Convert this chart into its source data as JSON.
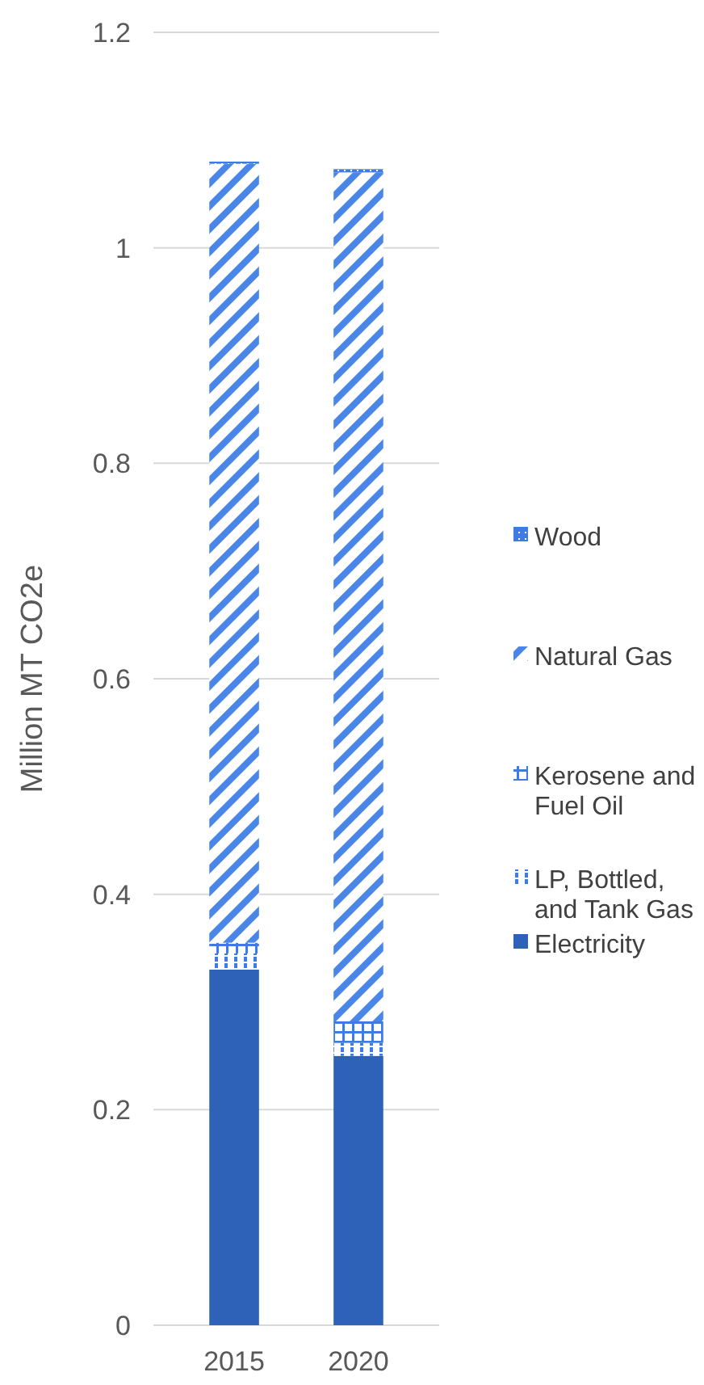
{
  "chart_data": {
    "type": "bar",
    "stacked": true,
    "categories": [
      "2015",
      "2020"
    ],
    "ylabel": "Million MT CO2e",
    "ylim": [
      0,
      1.2
    ],
    "yticks": [
      0,
      0.2,
      0.4,
      0.6,
      0.8,
      1,
      1.2
    ],
    "grid": "y",
    "legend": "right",
    "series": [
      {
        "name": "Electricity",
        "color": "#2e62b8",
        "values": [
          0.33,
          0.25
        ]
      },
      {
        "name": "LP, Bottled, and Tank Gas",
        "color": "#3f7be0",
        "values": [
          0.015,
          0.012
        ]
      },
      {
        "name": "Kerosene and Fuel Oil",
        "color": "#3f7be0",
        "values": [
          0.01,
          0.02
        ]
      },
      {
        "name": "Natural Gas",
        "color": "#4a86e8",
        "values": [
          0.723,
          0.788
        ]
      },
      {
        "name": "Wood",
        "color": "#3f7be0",
        "values": [
          0.002,
          0.003
        ]
      }
    ]
  }
}
